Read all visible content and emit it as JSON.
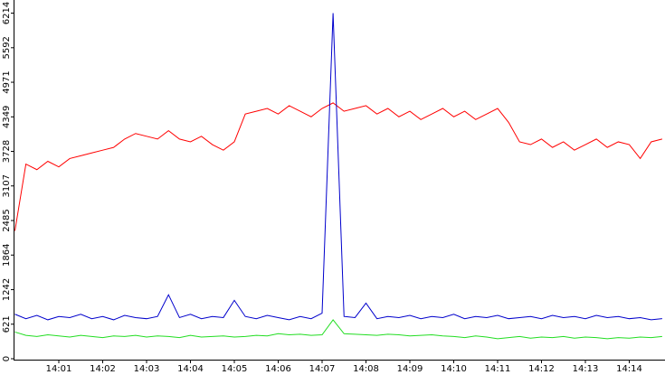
{
  "chart_data": {
    "type": "line",
    "categories": [
      null,
      null,
      null,
      null,
      "14:01",
      null,
      null,
      null,
      "14:02",
      null,
      null,
      null,
      "14:03",
      null,
      null,
      null,
      "14:04",
      null,
      null,
      null,
      "14:05",
      null,
      null,
      null,
      "14:06",
      null,
      null,
      null,
      "14:07",
      null,
      null,
      null,
      "14:08",
      null,
      null,
      null,
      "14:09",
      null,
      null,
      null,
      "14:10",
      null,
      null,
      null,
      "14:11",
      null,
      null,
      null,
      "14:12",
      null,
      null,
      null,
      "14:13",
      null,
      null,
      null,
      "14:14",
      null,
      null,
      null
    ],
    "series": [
      {
        "color": "#ff0000",
        "values": [
          2300,
          3500,
          3400,
          3550,
          3450,
          3600,
          3650,
          3700,
          3750,
          3800,
          3950,
          4050,
          4000,
          3950,
          4100,
          3950,
          3900,
          4000,
          3850,
          3750,
          3900,
          4400,
          4450,
          4500,
          4400,
          4550,
          4450,
          4350,
          4500,
          4600,
          4450,
          4500,
          4550,
          4400,
          4500,
          4350,
          4450,
          4300,
          4400,
          4500,
          4350,
          4450,
          4300,
          4400,
          4500,
          4250,
          3900,
          3850,
          3950,
          3800,
          3900,
          3750,
          3850,
          3950,
          3800,
          3900,
          3850,
          3600,
          3900,
          3950
        ]
      },
      {
        "color": "#0000cc",
        "values": [
          800,
          720,
          780,
          700,
          760,
          740,
          800,
          720,
          760,
          700,
          780,
          740,
          720,
          760,
          1150,
          740,
          800,
          720,
          760,
          740,
          1050,
          760,
          720,
          780,
          740,
          700,
          760,
          720,
          820,
          6214,
          760,
          740,
          1000,
          720,
          760,
          740,
          780,
          720,
          760,
          740,
          800,
          720,
          760,
          740,
          780,
          720,
          740,
          760,
          720,
          780,
          740,
          760,
          720,
          780,
          740,
          760,
          720,
          740,
          700,
          720
        ]
      },
      {
        "color": "#22dd22",
        "values": [
          480,
          420,
          400,
          430,
          410,
          390,
          420,
          400,
          380,
          410,
          400,
          420,
          390,
          410,
          400,
          380,
          420,
          390,
          400,
          410,
          390,
          400,
          420,
          410,
          450,
          430,
          440,
          420,
          430,
          700,
          450,
          440,
          430,
          420,
          440,
          430,
          410,
          420,
          430,
          410,
          400,
          380,
          410,
          390,
          360,
          380,
          400,
          370,
          390,
          380,
          400,
          370,
          390,
          380,
          360,
          380,
          370,
          390,
          380,
          400
        ]
      }
    ],
    "ylim": [
      0,
      6450
    ],
    "yticks": [
      0,
      621,
      1242,
      1864,
      2485,
      3107,
      3728,
      4349,
      4971,
      5592,
      6214
    ]
  }
}
